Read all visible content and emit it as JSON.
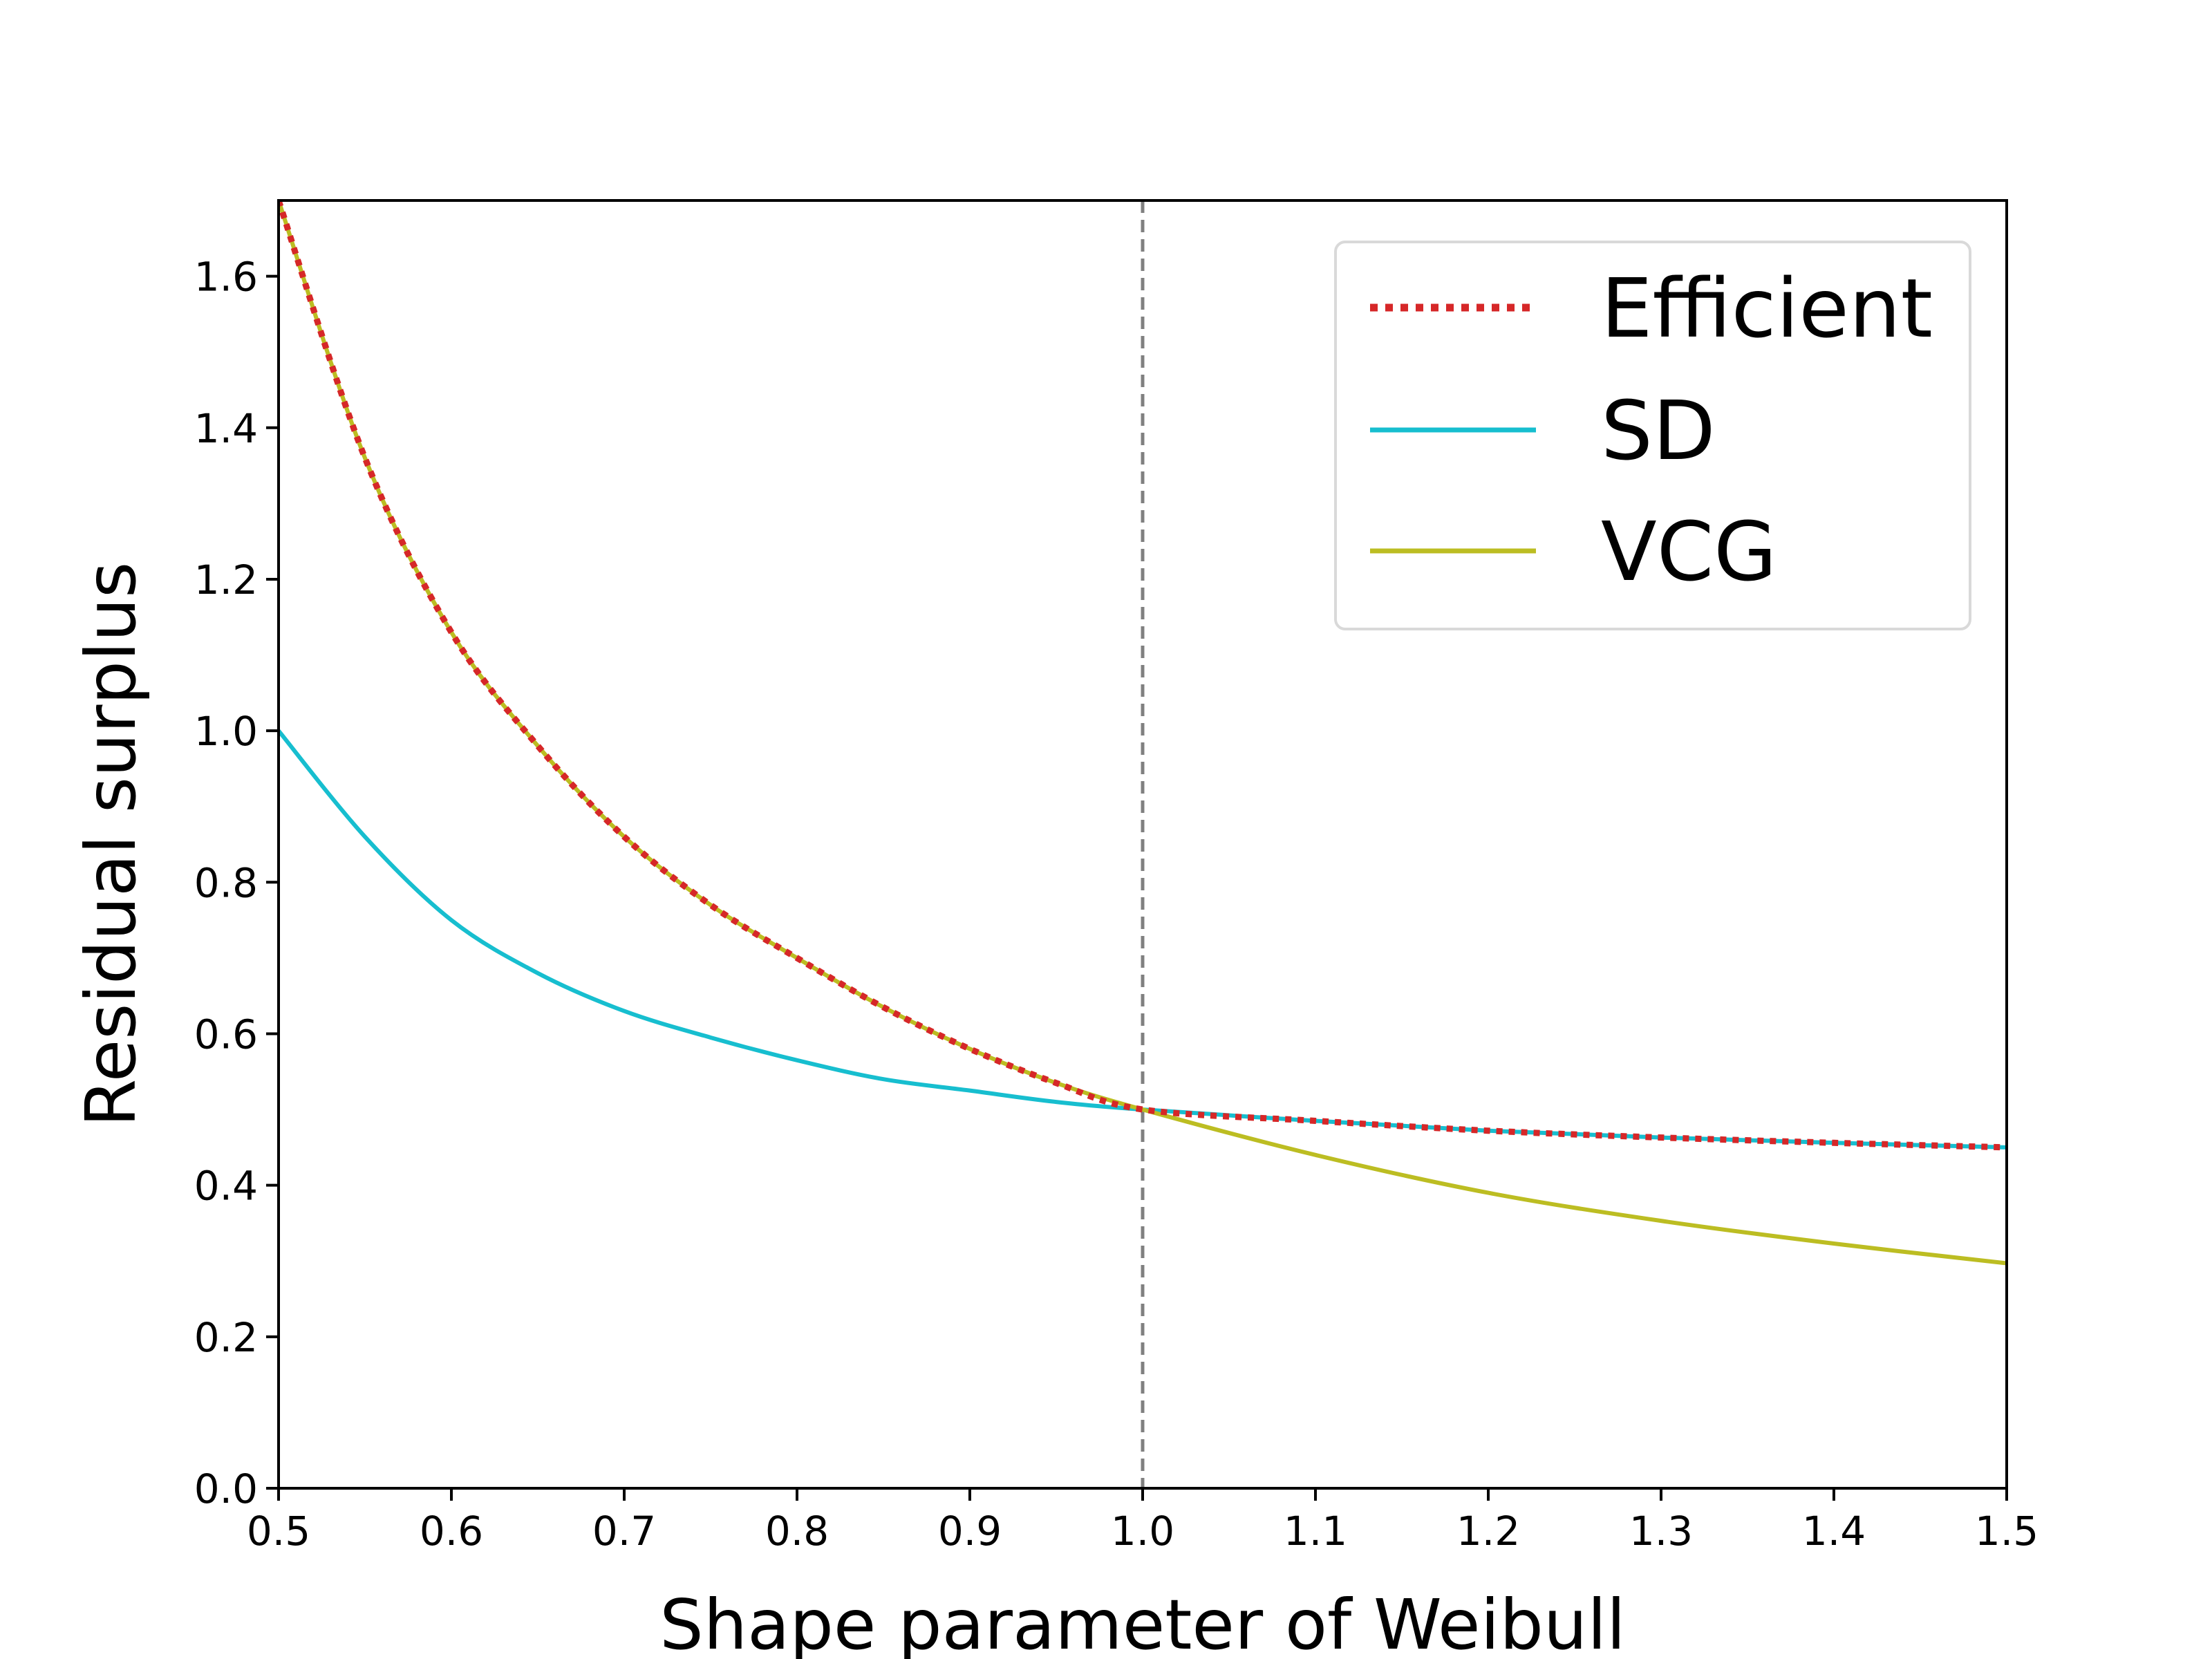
{
  "chart_data": {
    "type": "line",
    "title": "",
    "xlabel": "Shape parameter of Weibull",
    "ylabel": "Residual surplus",
    "xlim": [
      0.5,
      1.5
    ],
    "ylim": [
      0.0,
      1.7
    ],
    "x_ticks": [
      "0.5",
      "0.6",
      "0.7",
      "0.8",
      "0.9",
      "1.0",
      "1.1",
      "1.2",
      "1.3",
      "1.4",
      "1.5"
    ],
    "y_ticks": [
      "0.0",
      "0.2",
      "0.4",
      "0.6",
      "0.8",
      "1.0",
      "1.2",
      "1.4",
      "1.6"
    ],
    "grid": false,
    "legend_position": "top-right",
    "reference_line": {
      "orientation": "vertical",
      "x": 1.0,
      "style": "dashed",
      "color": "#808080"
    },
    "series": [
      {
        "name": "Efficient",
        "style": "dotted",
        "color": "#d62728",
        "x": [
          0.5,
          0.55,
          0.6,
          0.65,
          0.7,
          0.75,
          0.8,
          0.85,
          0.9,
          0.95,
          1.0,
          1.1,
          1.2,
          1.3,
          1.4,
          1.5
        ],
        "values": [
          1.7,
          1.36,
          1.13,
          0.98,
          0.86,
          0.77,
          0.7,
          0.635,
          0.58,
          0.535,
          0.5,
          0.485,
          0.472,
          0.463,
          0.456,
          0.45
        ]
      },
      {
        "name": "SD",
        "style": "solid",
        "color": "#17becf",
        "x": [
          0.5,
          0.55,
          0.6,
          0.65,
          0.7,
          0.75,
          0.8,
          0.85,
          0.9,
          0.95,
          1.0,
          1.1,
          1.2,
          1.3,
          1.4,
          1.5
        ],
        "values": [
          1.0,
          0.86,
          0.75,
          0.68,
          0.63,
          0.595,
          0.565,
          0.54,
          0.525,
          0.51,
          0.5,
          0.485,
          0.472,
          0.463,
          0.456,
          0.45
        ]
      },
      {
        "name": "VCG",
        "style": "solid",
        "color": "#bcbd22",
        "x": [
          0.5,
          0.55,
          0.6,
          0.65,
          0.7,
          0.75,
          0.8,
          0.85,
          0.9,
          0.95,
          1.0,
          1.1,
          1.2,
          1.3,
          1.4,
          1.5
        ],
        "values": [
          1.7,
          1.36,
          1.13,
          0.98,
          0.86,
          0.77,
          0.7,
          0.635,
          0.58,
          0.535,
          0.5,
          0.44,
          0.39,
          0.353,
          0.323,
          0.297
        ]
      }
    ]
  }
}
